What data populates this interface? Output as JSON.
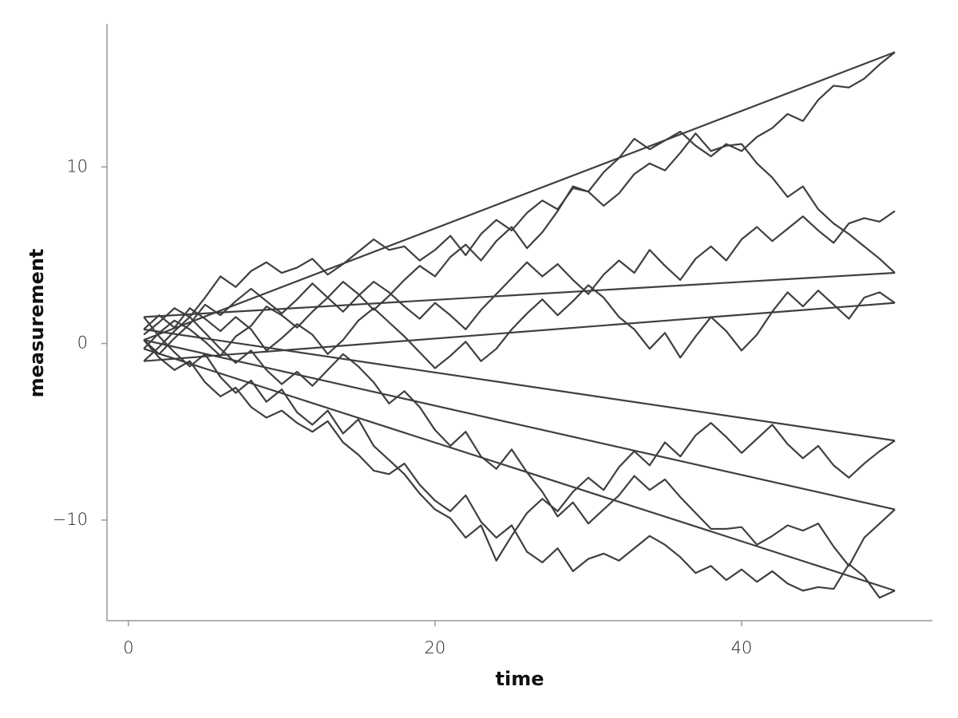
{
  "chart_data": {
    "type": "line",
    "x_label": "time",
    "y_label": "measurement",
    "xlim": [
      -1.4,
      52.45
    ],
    "ylim": [
      -15.7,
      18.1
    ],
    "xticks": [
      0,
      20,
      40
    ],
    "yticks": [
      {
        "value": -10,
        "label": "−10"
      },
      0,
      10
    ],
    "grid": false,
    "x": [
      1,
      2,
      3,
      4,
      5,
      6,
      7,
      8,
      9,
      10,
      11,
      12,
      13,
      14,
      15,
      16,
      17,
      18,
      19,
      20,
      21,
      22,
      23,
      24,
      25,
      26,
      27,
      28,
      29,
      30,
      31,
      32,
      33,
      34,
      35,
      36,
      37,
      38,
      39,
      40,
      41,
      42,
      43,
      44,
      45,
      46,
      47,
      48,
      49,
      50
    ],
    "series": [
      {
        "color": "#3f3f3f",
        "values": [
          0.5,
          1.2,
          2.0,
          1.5,
          2.6,
          3.8,
          3.2,
          4.1,
          4.6,
          4.0,
          4.3,
          4.8,
          3.9,
          4.5,
          5.2,
          5.9,
          5.3,
          5.5,
          4.7,
          5.3,
          6.1,
          5.0,
          6.2,
          7.0,
          6.4,
          7.4,
          8.1,
          7.6,
          8.8,
          8.6,
          9.7,
          10.5,
          11.6,
          11.0,
          11.5,
          12.0,
          11.2,
          10.6,
          11.3,
          10.9,
          11.7,
          12.2,
          13.0,
          12.6,
          13.8,
          14.6,
          14.5,
          15.0,
          15.8,
          16.5
        ]
      },
      {
        "color": "#3f3f3f",
        "values": [
          0.2,
          -0.8,
          -1.5,
          -1.0,
          -2.2,
          -3.0,
          -2.5,
          -3.6,
          -4.2,
          -3.8,
          -4.5,
          -5.0,
          -4.4,
          -5.6,
          -6.3,
          -7.2,
          -7.4,
          -6.8,
          -8.0,
          -8.9,
          -9.5,
          -8.6,
          -10.1,
          -11.0,
          -10.3,
          -11.8,
          -12.4,
          -11.6,
          -12.9,
          -12.2,
          -11.9,
          -12.3,
          -11.6,
          -10.9,
          -11.4,
          -12.1,
          -13.0,
          -12.6,
          -13.4,
          -12.8,
          -13.5,
          -12.9,
          -13.6,
          -14.0,
          -13.8,
          -13.9,
          -12.5,
          -13.2,
          -14.4,
          -14.0
        ]
      },
      {
        "color": "#3f3f3f",
        "values": [
          -0.3,
          0.6,
          1.3,
          0.8,
          0.1,
          -0.7,
          0.4,
          1.0,
          2.1,
          1.6,
          0.9,
          1.8,
          2.6,
          3.5,
          2.8,
          1.9,
          2.7,
          3.6,
          4.4,
          3.8,
          4.9,
          5.6,
          4.7,
          5.8,
          6.6,
          5.4,
          6.3,
          7.5,
          8.9,
          8.6,
          7.8,
          8.5,
          9.6,
          10.2,
          9.8,
          10.8,
          11.9,
          10.9,
          11.2,
          11.3,
          10.2,
          9.4,
          8.3,
          8.9,
          7.6,
          6.8,
          6.2,
          5.5,
          4.8,
          4.0
        ]
      },
      {
        "color": "#3f3f3f",
        "values": [
          1.5,
          0.4,
          -0.5,
          -1.3,
          -0.6,
          -1.9,
          -2.8,
          -2.1,
          -3.3,
          -2.6,
          -3.9,
          -4.6,
          -3.8,
          -5.1,
          -4.3,
          -5.8,
          -6.6,
          -7.4,
          -8.5,
          -9.4,
          -9.9,
          -11.0,
          -10.3,
          -12.3,
          -10.9,
          -9.6,
          -8.8,
          -9.5,
          -8.4,
          -7.6,
          -8.3,
          -7.0,
          -6.1,
          -6.9,
          -5.6,
          -6.4,
          -5.2,
          -4.5,
          -5.3,
          -6.2,
          -5.4,
          -4.6,
          -5.7,
          -6.5,
          -5.8,
          -6.9,
          -7.6,
          -6.8,
          -6.1,
          -5.5
        ]
      },
      {
        "color": "#3f3f3f",
        "values": [
          0.8,
          1.6,
          0.9,
          2.0,
          1.4,
          0.7,
          1.5,
          0.8,
          -0.4,
          0.3,
          1.1,
          0.5,
          -0.6,
          0.2,
          1.3,
          2.0,
          1.2,
          0.4,
          -0.5,
          -1.4,
          -0.7,
          0.1,
          -1.0,
          -0.3,
          0.8,
          1.7,
          2.5,
          1.6,
          2.4,
          3.3,
          2.6,
          1.5,
          0.8,
          -0.3,
          0.6,
          -0.8,
          0.4,
          1.5,
          0.7,
          -0.4,
          0.5,
          1.8,
          2.9,
          2.1,
          3.0,
          2.2,
          1.4,
          2.6,
          2.9,
          2.3
        ]
      },
      {
        "color": "#3f3f3f",
        "values": [
          -1.0,
          -0.2,
          0.7,
          1.5,
          0.6,
          -0.3,
          -1.1,
          -0.4,
          -1.5,
          -2.3,
          -1.6,
          -2.4,
          -1.5,
          -0.6,
          -1.3,
          -2.2,
          -3.4,
          -2.7,
          -3.6,
          -4.9,
          -5.8,
          -5.0,
          -6.4,
          -7.1,
          -6.0,
          -7.3,
          -8.4,
          -9.8,
          -9.0,
          -10.2,
          -9.4,
          -8.6,
          -7.5,
          -8.3,
          -7.7,
          -8.7,
          -9.6,
          -10.5,
          -10.5,
          -10.4,
          -11.4,
          -10.9,
          -10.3,
          -10.6,
          -10.2,
          -11.5,
          -12.6,
          -11.0,
          -10.2,
          -9.4
        ]
      },
      {
        "color": "#3f3f3f",
        "values": [
          0.2,
          -0.6,
          0.3,
          1.1,
          2.2,
          1.6,
          2.4,
          3.1,
          2.4,
          1.7,
          2.5,
          3.4,
          2.6,
          1.8,
          2.7,
          3.5,
          2.9,
          2.1,
          1.4,
          2.3,
          1.6,
          0.8,
          1.9,
          2.8,
          3.7,
          4.6,
          3.8,
          4.5,
          3.6,
          2.8,
          3.9,
          4.7,
          4.0,
          5.3,
          4.4,
          3.6,
          4.8,
          5.5,
          4.7,
          5.9,
          6.6,
          5.8,
          6.5,
          7.2,
          6.4,
          5.7,
          6.8,
          7.1,
          6.9,
          7.5
        ]
      }
    ]
  }
}
